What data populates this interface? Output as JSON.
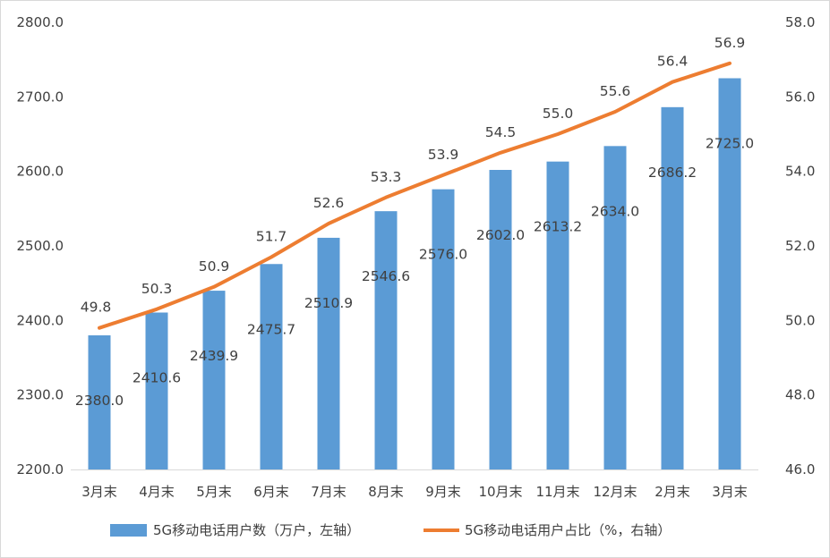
{
  "chart_data": {
    "type": "bar+line",
    "categories": [
      "3月末",
      "4月末",
      "5月末",
      "6月末",
      "7月末",
      "8月末",
      "9月末",
      "10月末",
      "11月末",
      "12月末",
      "2月末",
      "3月末"
    ],
    "series": [
      {
        "name": "5G移动电话用户数（万户，左轴）",
        "type": "bar",
        "axis": "left",
        "color": "#5b9bd5",
        "values": [
          2380.0,
          2410.6,
          2439.9,
          2475.7,
          2510.9,
          2546.6,
          2576.0,
          2602.0,
          2613.2,
          2634.0,
          2686.2,
          2725.0
        ],
        "labels": [
          "2380.0",
          "2410.6",
          "2439.9",
          "2475.7",
          "2510.9",
          "2546.6",
          "2576.0",
          "2602.0",
          "2613.2",
          "2634.0",
          "2686.2",
          "2725.0"
        ]
      },
      {
        "name": "5G移动电话用户占比（%，右轴）",
        "type": "line",
        "axis": "right",
        "color": "#ed7d31",
        "values": [
          49.8,
          50.3,
          50.9,
          51.7,
          52.6,
          53.3,
          53.9,
          54.5,
          55.0,
          55.6,
          56.4,
          56.9
        ],
        "labels": [
          "49.8",
          "50.3",
          "50.9",
          "51.7",
          "52.6",
          "53.3",
          "53.9",
          "54.5",
          "55.0",
          "55.6",
          "56.4",
          "56.9"
        ]
      }
    ],
    "y_left": {
      "min": 2200,
      "max": 2800,
      "ticks": [
        "2200.0",
        "2300.0",
        "2400.0",
        "2500.0",
        "2600.0",
        "2700.0",
        "2800.0"
      ]
    },
    "y_right": {
      "min": 46,
      "max": 58,
      "ticks": [
        "46.0",
        "48.0",
        "50.0",
        "52.0",
        "54.0",
        "56.0",
        "58.0"
      ]
    },
    "grid": false,
    "legend_position": "bottom"
  }
}
